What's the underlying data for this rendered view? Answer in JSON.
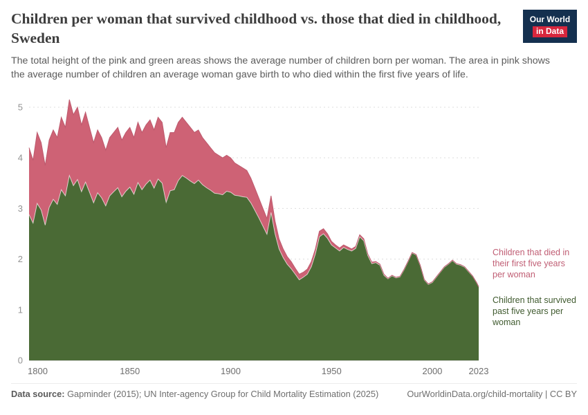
{
  "header": {
    "title": "Children per woman that survived childhood vs. those that died in childhood, Sweden",
    "subtitle": "The total height of the pink and green areas shows the average number of children born per woman. The area in pink shows the average number of children an average woman gave birth to who died within the first five years of life.",
    "logo": {
      "line1": "Our World",
      "line2": "in Data",
      "navy": "#14304F",
      "red": "#D7263D"
    }
  },
  "annotations": {
    "died_label": "Children that died in their first five years per woman",
    "survived_label": "Children that survived past five years per woman",
    "died_label_color": "#c05e74",
    "survived_label_color": "#3f5a2e"
  },
  "footer": {
    "source_prefix": "Data source:",
    "source_text": " Gapminder (2015); UN Inter-agency Group for Child Mortality Estimation (2025)",
    "credit": "OurWorldinData.org/child-mortality | CC BY"
  },
  "chart_data": {
    "type": "area",
    "stacked": true,
    "title": "Children per woman that survived childhood vs. those that died in childhood, Sweden",
    "xlabel": "",
    "ylabel": "",
    "grid": "horizontal-dashed",
    "xlim": [
      1800,
      2023
    ],
    "ylim": [
      0,
      5.3
    ],
    "x_ticks": [
      1800,
      1850,
      1900,
      1950,
      2000,
      2023
    ],
    "y_ticks": [
      0,
      1,
      2,
      3,
      4,
      5
    ],
    "x": [
      1800,
      1802,
      1804,
      1806,
      1808,
      1810,
      1812,
      1814,
      1816,
      1818,
      1820,
      1822,
      1824,
      1826,
      1828,
      1830,
      1832,
      1834,
      1836,
      1838,
      1840,
      1842,
      1844,
      1846,
      1848,
      1850,
      1852,
      1854,
      1856,
      1858,
      1860,
      1862,
      1864,
      1866,
      1868,
      1870,
      1872,
      1874,
      1876,
      1878,
      1880,
      1882,
      1884,
      1886,
      1888,
      1890,
      1892,
      1894,
      1896,
      1898,
      1900,
      1902,
      1904,
      1906,
      1908,
      1910,
      1912,
      1914,
      1916,
      1918,
      1920,
      1922,
      1924,
      1926,
      1928,
      1930,
      1932,
      1934,
      1936,
      1938,
      1940,
      1942,
      1944,
      1946,
      1948,
      1950,
      1952,
      1954,
      1956,
      1958,
      1960,
      1962,
      1964,
      1966,
      1968,
      1970,
      1972,
      1974,
      1976,
      1978,
      1980,
      1982,
      1984,
      1986,
      1988,
      1990,
      1992,
      1994,
      1996,
      1998,
      2000,
      2002,
      2004,
      2006,
      2008,
      2010,
      2012,
      2014,
      2016,
      2018,
      2020,
      2022,
      2023
    ],
    "series": [
      {
        "name": "Children that survived past five years per woman",
        "color": "#4A6A35",
        "values": [
          2.88,
          2.71,
          3.1,
          2.97,
          2.67,
          3.02,
          3.18,
          3.08,
          3.37,
          3.25,
          3.65,
          3.45,
          3.57,
          3.33,
          3.52,
          3.32,
          3.11,
          3.31,
          3.21,
          3.05,
          3.25,
          3.33,
          3.41,
          3.23,
          3.34,
          3.42,
          3.28,
          3.51,
          3.37,
          3.48,
          3.56,
          3.4,
          3.58,
          3.5,
          3.12,
          3.35,
          3.37,
          3.55,
          3.65,
          3.6,
          3.54,
          3.49,
          3.56,
          3.47,
          3.41,
          3.36,
          3.3,
          3.29,
          3.27,
          3.34,
          3.32,
          3.26,
          3.25,
          3.23,
          3.22,
          3.11,
          2.96,
          2.81,
          2.65,
          2.49,
          2.92,
          2.5,
          2.2,
          2.03,
          1.9,
          1.81,
          1.7,
          1.59,
          1.64,
          1.7,
          1.85,
          2.1,
          2.44,
          2.5,
          2.41,
          2.28,
          2.22,
          2.16,
          2.23,
          2.19,
          2.16,
          2.21,
          2.44,
          2.36,
          2.07,
          1.91,
          1.93,
          1.88,
          1.68,
          1.61,
          1.67,
          1.63,
          1.65,
          1.79,
          1.95,
          2.12,
          2.08,
          1.87,
          1.59,
          1.5,
          1.54,
          1.64,
          1.74,
          1.84,
          1.9,
          1.97,
          1.9,
          1.88,
          1.84,
          1.75,
          1.66,
          1.53,
          1.45
        ]
      },
      {
        "name": "Children that died in their first five years per woman",
        "color": "#CE6275",
        "values": [
          1.32,
          1.24,
          1.4,
          1.33,
          1.18,
          1.33,
          1.37,
          1.32,
          1.43,
          1.35,
          1.5,
          1.4,
          1.43,
          1.32,
          1.38,
          1.28,
          1.19,
          1.24,
          1.19,
          1.1,
          1.15,
          1.17,
          1.19,
          1.12,
          1.16,
          1.18,
          1.12,
          1.19,
          1.13,
          1.17,
          1.19,
          1.15,
          1.22,
          1.2,
          1.08,
          1.15,
          1.13,
          1.15,
          1.15,
          1.1,
          1.06,
          1.01,
          0.99,
          0.93,
          0.89,
          0.84,
          0.8,
          0.76,
          0.73,
          0.71,
          0.68,
          0.64,
          0.6,
          0.57,
          0.53,
          0.49,
          0.44,
          0.39,
          0.35,
          0.31,
          0.33,
          0.25,
          0.2,
          0.17,
          0.15,
          0.14,
          0.12,
          0.11,
          0.1,
          0.1,
          0.1,
          0.1,
          0.11,
          0.1,
          0.09,
          0.07,
          0.06,
          0.06,
          0.05,
          0.05,
          0.04,
          0.04,
          0.04,
          0.04,
          0.03,
          0.03,
          0.02,
          0.02,
          0.02,
          0.01,
          0.01,
          0.01,
          0.01,
          0.01,
          0.01,
          0.01,
          0.01,
          0.01,
          0.01,
          0.01,
          0.01,
          0.01,
          0.01,
          0.01,
          0.01,
          0.01,
          0.01,
          0.01,
          0.01,
          0.01,
          0.005,
          0.005,
          0.004
        ]
      }
    ]
  }
}
